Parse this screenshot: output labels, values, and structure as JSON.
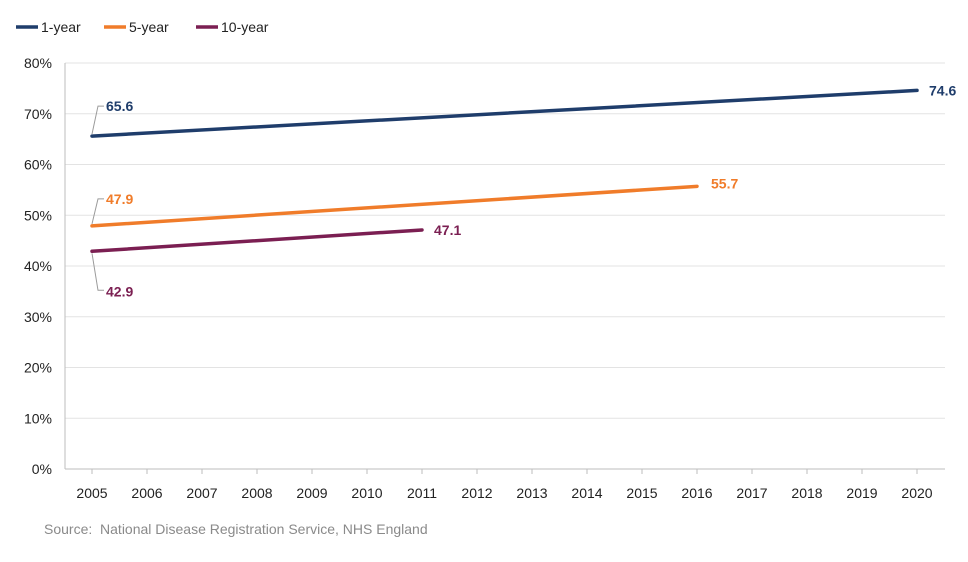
{
  "chart_data": {
    "type": "line",
    "x": [
      2005,
      2006,
      2007,
      2008,
      2009,
      2010,
      2011,
      2012,
      2013,
      2014,
      2015,
      2016,
      2017,
      2018,
      2019,
      2020
    ],
    "ylim": [
      0,
      80
    ],
    "y_ticks": [
      0,
      10,
      20,
      30,
      40,
      50,
      60,
      70,
      80
    ],
    "y_tick_format": "%",
    "grid": "horizontal",
    "legend_position": "top-left",
    "series": [
      {
        "name": "1-year",
        "color": "#1f3d6b",
        "x_start": 2005,
        "x_end": 2020,
        "y_start": 65.6,
        "y_end": 74.6,
        "labels": {
          "start": "65.6",
          "end": "74.6"
        }
      },
      {
        "name": "5-year",
        "color": "#f07c2a",
        "x_start": 2005,
        "x_end": 2016,
        "y_start": 47.9,
        "y_end": 55.7,
        "labels": {
          "start": "47.9",
          "end": "55.7"
        }
      },
      {
        "name": "10-year",
        "color": "#7b1f52",
        "x_start": 2005,
        "x_end": 2011,
        "y_start": 42.9,
        "y_end": 47.1,
        "labels": {
          "start": "42.9",
          "end": "47.1"
        }
      }
    ]
  },
  "source_text": "Source:  National Disease Registration Service, NHS England"
}
